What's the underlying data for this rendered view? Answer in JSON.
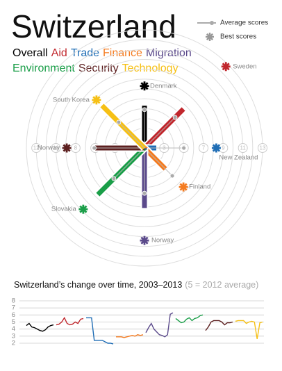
{
  "title": "Switzerland",
  "legend": {
    "average": "Average scores",
    "best": "Best scores"
  },
  "chart_data": [
    {
      "type": "radial",
      "rlim": [
        1,
        13
      ],
      "rticks": [
        3,
        4,
        5,
        6,
        7,
        8,
        9,
        10,
        11,
        12,
        13
      ],
      "series": [
        {
          "name": "Overall",
          "color": "#000000",
          "value": 5.3,
          "average": 4.9,
          "best": 7.3,
          "best_label": "Denmark"
        },
        {
          "name": "Aid",
          "color": "#c1272d",
          "value": 6.6,
          "average": 5.4,
          "best": 12.7,
          "best_label": "Sweden"
        },
        {
          "name": "Trade",
          "color": "#1f6db5",
          "value": 2.2,
          "average": 5.0,
          "best": 8.3,
          "best_label": "New Zealand"
        },
        {
          "name": "Finance",
          "color": "#f47b20",
          "value": 4.0,
          "average": 5.0,
          "best": 6.6,
          "best_label": "Finland"
        },
        {
          "name": "Migration",
          "color": "#5b4a8b",
          "value": 7.1,
          "average": 5.6,
          "best": 10.4,
          "best_label": "Norway"
        },
        {
          "name": "Environment",
          "color": "#1a9e48",
          "value": 7.7,
          "average": 5.4,
          "best": 9.8,
          "best_label": "Slovakia"
        },
        {
          "name": "Security",
          "color": "#5c1f1f",
          "value": 6.0,
          "average": 6.1,
          "best": 8.9,
          "best_label": "Norway"
        },
        {
          "name": "Technology",
          "color": "#f6c015",
          "value": 7.1,
          "average": 4.7,
          "best": 7.9,
          "best_label": "South Korea"
        }
      ]
    },
    {
      "type": "line",
      "title": "Switzerland’s change over time, 2003–2013",
      "subtitle": "(5 = 2012 average)",
      "ylim": [
        2,
        8
      ],
      "yticks": [
        2,
        3,
        4,
        5,
        6,
        7,
        8
      ],
      "grid": true,
      "series": [
        {
          "color": "#000000",
          "values": [
            4.5,
            4.8,
            4.3,
            4.2,
            4.0,
            3.8,
            3.7,
            3.9,
            4.3,
            4.5,
            4.6
          ]
        },
        {
          "color": "#c1272d",
          "values": [
            4.6,
            4.7,
            5.0,
            5.6,
            4.8,
            4.6,
            4.7,
            5.0,
            4.8,
            5.4,
            5.5
          ]
        },
        {
          "color": "#1f6db5",
          "values": [
            5.6,
            5.6,
            5.6,
            2.4,
            2.4,
            2.4,
            2.4,
            2.2,
            2.0,
            2.0,
            1.9
          ]
        },
        {
          "color": "#f47b20",
          "values": [
            2.9,
            2.9,
            2.9,
            2.8,
            2.9,
            3.0,
            3.1,
            3.0,
            3.2,
            3.1,
            3.2
          ]
        },
        {
          "color": "#5b4a8b",
          "values": [
            3.5,
            4.2,
            4.8,
            4.0,
            3.6,
            3.2,
            3.1,
            2.9,
            3.2,
            6.1,
            6.3
          ]
        },
        {
          "color": "#1a9e48",
          "values": [
            5.5,
            5.2,
            4.9,
            5.0,
            5.4,
            5.6,
            5.2,
            5.5,
            5.6,
            5.9,
            6.0
          ]
        },
        {
          "color": "#5c1f1f",
          "values": [
            3.8,
            4.3,
            5.0,
            5.2,
            5.2,
            5.2,
            5.0,
            4.6,
            4.9,
            4.9,
            5.0
          ]
        },
        {
          "color": "#f6c015",
          "values": [
            5.1,
            5.2,
            5.2,
            5.2,
            4.8,
            5.0,
            5.1,
            5.0,
            2.6,
            4.9,
            5.0
          ]
        }
      ]
    }
  ]
}
